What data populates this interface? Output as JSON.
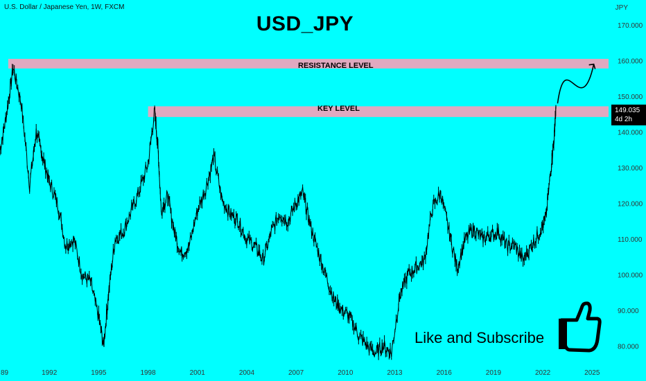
{
  "header": {
    "symbol_description": "U.S. Dollar / Japanese Yen, 1W, FXCM",
    "currency": "JPY"
  },
  "title": "USD_JPY",
  "annotations": {
    "resistance_label": "RESISTANCE LEVEL",
    "key_label": "KEY LEVEL",
    "call_to_action": "Like and Subscribe",
    "thumbs_up_icon": "thumbs-up-icon",
    "forecast_arrow_icon": "curved-arrow-icon"
  },
  "price_tag": {
    "price": "149.035",
    "countdown": "4d 2h"
  },
  "colors": {
    "background": "#00ffff",
    "zone_fill": "#e0a9c0",
    "price_series": "#000000"
  },
  "chart_data": {
    "type": "line",
    "x_ticks": [
      "89",
      "1992",
      "1995",
      "1998",
      "2001",
      "2004",
      "2007",
      "2010",
      "2013",
      "2016",
      "2019",
      "2022",
      "2025"
    ],
    "y_ticks": [
      "80.000",
      "90.000",
      "100.000",
      "110.000",
      "120.000",
      "130.000",
      "140.000",
      "150.000",
      "160.000",
      "170.000"
    ],
    "ylim": [
      76,
      177
    ],
    "xlim": [
      1989.0,
      2026.0
    ],
    "zones": [
      {
        "name": "RESISTANCE LEVEL",
        "y_low": 157.8,
        "y_high": 160.5,
        "x_start": 1989.5,
        "x_end": 2026.0
      },
      {
        "name": "KEY LEVEL",
        "y_low": 144.2,
        "y_high": 147.2,
        "x_start": 1998.0,
        "x_end": 2026.0
      }
    ],
    "series": [
      {
        "x": [
          1989.0,
          1989.4,
          1989.8,
          1990.3,
          1990.8,
          1991.2,
          1991.6,
          1992.0,
          1992.5,
          1993.0,
          1993.5,
          1994.0,
          1994.5,
          1995.0,
          1995.3,
          1995.6,
          1996.0,
          1996.5,
          1997.0,
          1997.5,
          1998.0,
          1998.4,
          1998.6,
          1998.8,
          1999.2,
          1999.6,
          2000.0,
          2000.5,
          2001.0,
          2001.5,
          2002.0,
          2002.5,
          2003.0,
          2003.5,
          2004.0,
          2004.5,
          2005.0,
          2005.5,
          2006.0,
          2006.5,
          2007.0,
          2007.4,
          2007.8,
          2008.3,
          2008.8,
          2009.3,
          2009.8,
          2010.3,
          2010.8,
          2011.3,
          2011.8,
          2012.3,
          2012.8,
          2013.3,
          2013.8,
          2014.3,
          2014.8,
          2015.3,
          2015.8,
          2016.3,
          2016.8,
          2017.3,
          2017.8,
          2018.3,
          2018.8,
          2019.3,
          2019.8,
          2020.3,
          2020.8,
          2021.3,
          2021.8,
          2022.2,
          2022.5,
          2022.7,
          2022.8
        ],
        "y": [
          135,
          145,
          158,
          148,
          125,
          140,
          133,
          126,
          120,
          108,
          110,
          100,
          98,
          88,
          80,
          95,
          110,
          112,
          118,
          124,
          131,
          146,
          136,
          118,
          122,
          112,
          106,
          108,
          118,
          124,
          133,
          121,
          117,
          115,
          110,
          108,
          104,
          112,
          117,
          115,
          120,
          123,
          115,
          107,
          100,
          93,
          90,
          88,
          83,
          80,
          78,
          80,
          78,
          94,
          100,
          102,
          104,
          119,
          123,
          112,
          102,
          110,
          113,
          110,
          111,
          112,
          108,
          108,
          104,
          108,
          112,
          116,
          130,
          139,
          147
        ]
      }
    ],
    "forecast": {
      "x": [
        2022.9,
        2023.4,
        2024.3,
        2025.1
      ],
      "y": [
        148,
        155,
        150,
        159
      ]
    }
  }
}
